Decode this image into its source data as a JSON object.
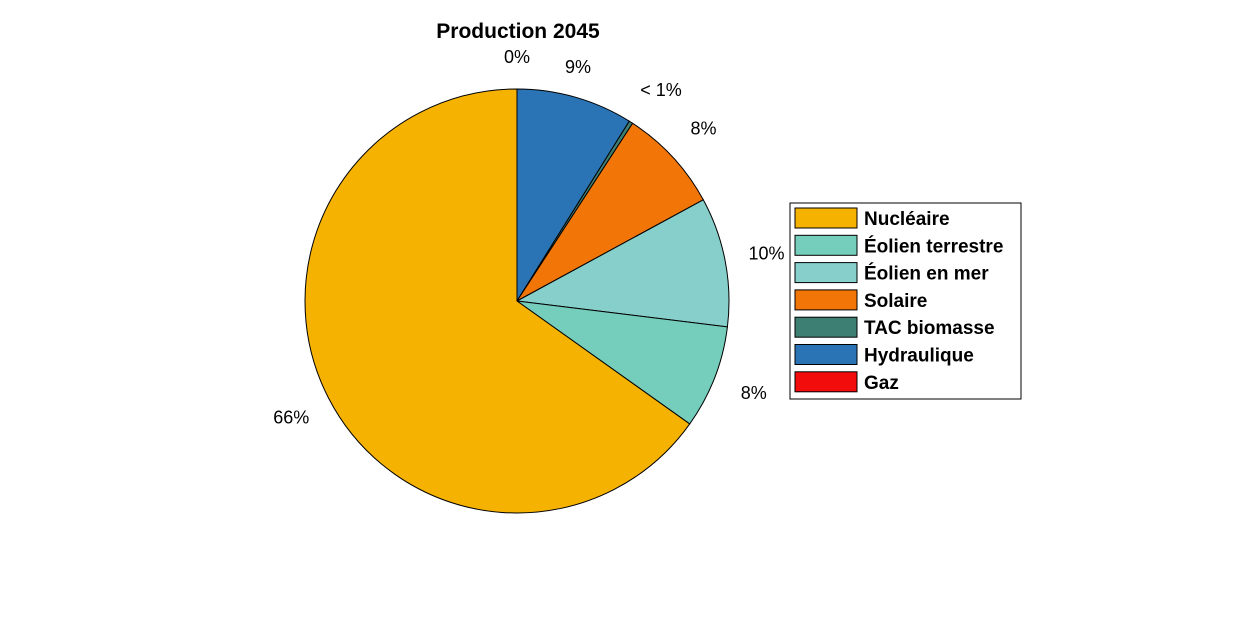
{
  "chart_data": {
    "type": "pie",
    "title": "Production 2045",
    "categories": [
      "Nucléaire",
      "Éolien terrestre",
      "Éolien en mer",
      "Solaire",
      "TAC biomasse",
      "Hydraulique",
      "Gaz"
    ],
    "values": [
      66,
      8,
      10,
      8,
      0.3,
      9,
      0
    ],
    "labels": [
      "66%",
      "8%",
      "10%",
      "8%",
      "< 1%",
      "9%",
      "0%"
    ],
    "colors": [
      "#F5B200",
      "#75CDBB",
      "#86CFCA",
      "#F27507",
      "#3E7F73",
      "#2A73B4",
      "#F20C0C"
    ],
    "legend": "right"
  }
}
